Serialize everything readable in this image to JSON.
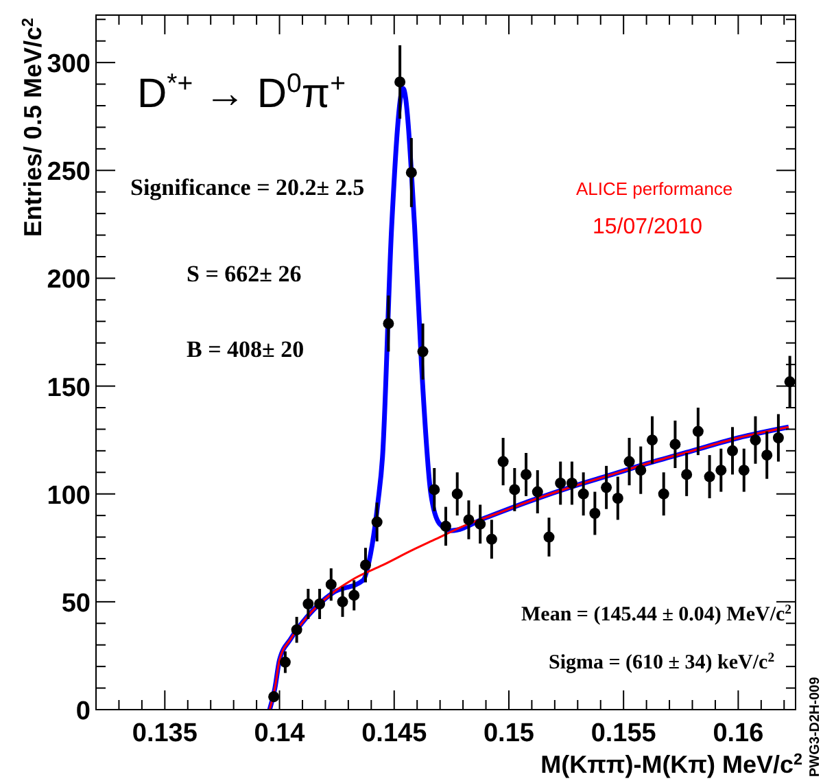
{
  "chart_data": {
    "type": "scatter",
    "title": "D$^{*+}$ → D$^{0}$π$^{+}$",
    "xlabel": "M(Kππ)-M(Kπ) MeV/c$^{2}$",
    "ylabel": "Entries/ 0.5 MeV/c$^{2}$",
    "annotations": [
      "Significance = 20.2± 2.5",
      "S = 662± 26",
      "B = 408± 20",
      "ALICE performance",
      "15/07/2010",
      "Mean = (145.44 ± 0.04) MeV/c$^{2}$",
      "Sigma = (610 ± 34) keV/c$^{2}$",
      "PWG3-D2H-009"
    ],
    "xlim": [
      0.132,
      0.1625
    ],
    "ylim": [
      0,
      322
    ],
    "xticks": [
      {
        "value": 0.133,
        "label": null
      },
      {
        "value": 0.134,
        "label": null
      },
      0.135,
      {
        "value": 0.136,
        "label": null
      },
      {
        "value": 0.137,
        "label": null
      },
      {
        "value": 0.138,
        "label": null
      },
      {
        "value": 0.139,
        "label": null
      },
      0.14,
      {
        "value": 0.141,
        "label": null
      },
      {
        "value": 0.142,
        "label": null
      },
      {
        "value": 0.143,
        "label": null
      },
      {
        "value": 0.144,
        "label": null
      },
      0.145,
      {
        "value": 0.146,
        "label": null
      },
      {
        "value": 0.147,
        "label": null
      },
      {
        "value": 0.148,
        "label": null
      },
      {
        "value": 0.149,
        "label": null
      },
      0.15,
      {
        "value": 0.151,
        "label": null
      },
      {
        "value": 0.152,
        "label": null
      },
      {
        "value": 0.153,
        "label": null
      },
      {
        "value": 0.154,
        "label": null
      },
      0.155,
      {
        "value": 0.156,
        "label": null
      },
      {
        "value": 0.157,
        "label": null
      },
      {
        "value": 0.158,
        "label": null
      },
      {
        "value": 0.159,
        "label": null
      },
      0.16,
      {
        "value": 0.161,
        "label": null
      },
      {
        "value": 0.162,
        "label": null
      }
    ],
    "yticks": [
      0,
      {
        "value": 10,
        "label": null
      },
      {
        "value": 20,
        "label": null
      },
      {
        "value": 30,
        "label": null
      },
      {
        "value": 40,
        "label": null
      },
      50,
      {
        "value": 60,
        "label": null
      },
      {
        "value": 70,
        "label": null
      },
      {
        "value": 80,
        "label": null
      },
      {
        "value": 90,
        "label": null
      },
      100,
      {
        "value": 110,
        "label": null
      },
      {
        "value": 120,
        "label": null
      },
      {
        "value": 130,
        "label": null
      },
      {
        "value": 140,
        "label": null
      },
      150,
      {
        "value": 160,
        "label": null
      },
      {
        "value": 170,
        "label": null
      },
      {
        "value": 180,
        "label": null
      },
      {
        "value": 190,
        "label": null
      },
      200,
      {
        "value": 210,
        "label": null
      },
      {
        "value": 220,
        "label": null
      },
      {
        "value": 230,
        "label": null
      },
      {
        "value": 240,
        "label": null
      },
      250,
      {
        "value": 260,
        "label": null
      },
      {
        "value": 270,
        "label": null
      },
      {
        "value": 280,
        "label": null
      },
      {
        "value": 290,
        "label": null
      },
      300,
      {
        "value": 310,
        "label": null
      },
      {
        "value": 320,
        "label": null
      }
    ],
    "marker": "circle",
    "series": [
      {
        "type": "line",
        "color": "#0000ff",
        "marker": "none",
        "x": [
          0.13957,
          0.1398,
          0.14,
          0.1405,
          0.1412,
          0.1423,
          0.14365,
          0.14389,
          0.14429,
          0.14449,
          0.14489,
          0.14539,
          0.14589,
          0.14619,
          0.1466,
          0.14699,
          0.1475,
          0.149,
          0.151,
          0.1528,
          0.1545,
          0.156,
          0.158,
          0.16,
          0.1622
        ],
        "values": [
          0,
          10,
          23,
          33,
          43,
          54,
          60,
          68,
          96,
          117,
          224,
          288,
          224,
          160,
          100,
          86,
          83,
          89,
          97,
          103.5,
          109,
          114,
          120,
          126,
          131
        ]
      },
      {
        "type": "line",
        "color": "#ff0000",
        "marker": "none",
        "x": [
          0.13957,
          0.1398,
          0.14,
          0.1405,
          0.1412,
          0.1423,
          0.1433,
          0.1445,
          0.1458,
          0.1468,
          0.148,
          0.1495,
          0.151,
          0.1528,
          0.1545,
          0.156,
          0.158,
          0.16,
          0.1622
        ],
        "values": [
          0,
          10,
          23,
          33,
          43,
          54,
          61,
          67,
          74,
          79,
          85,
          91,
          97,
          103.5,
          109,
          114,
          120,
          126,
          131
        ]
      },
      {
        "color": "#000000",
        "x": [
          0.13975,
          0.14025,
          0.14075,
          0.14125,
          0.14175,
          0.14225,
          0.14275,
          0.14325,
          0.14375,
          0.14425,
          0.14475,
          0.14525,
          0.14575,
          0.14625,
          0.14675,
          0.14725,
          0.14775,
          0.14825,
          0.14875,
          0.14925,
          0.14975,
          0.15025,
          0.15075,
          0.15125,
          0.15175,
          0.15225,
          0.15275,
          0.15325,
          0.15375,
          0.15425,
          0.15475,
          0.15525,
          0.15575,
          0.15625,
          0.15675,
          0.15725,
          0.15775,
          0.15825,
          0.15875,
          0.15925,
          0.15975,
          0.16025,
          0.16075,
          0.16125,
          0.16175,
          0.16225
        ],
        "values": [
          6,
          22,
          37,
          49,
          49,
          58,
          50,
          53,
          67,
          87,
          179,
          291,
          249,
          166,
          102,
          85,
          100,
          88,
          86,
          79,
          115,
          102,
          109,
          101,
          80,
          105,
          105,
          100,
          91,
          103,
          98,
          115,
          111,
          125,
          100,
          123,
          109,
          129,
          108,
          111,
          120,
          111,
          125,
          118,
          126,
          152
        ],
        "errors": [
          2.5,
          5,
          6,
          7,
          7,
          7.5,
          7,
          7,
          8,
          9,
          13,
          17,
          16,
          13,
          10,
          9,
          10,
          9,
          9,
          9,
          11,
          10,
          10,
          10,
          9,
          10,
          10,
          10,
          10,
          10,
          10,
          11,
          11,
          11,
          10,
          11,
          10,
          11,
          10,
          10,
          11,
          10,
          11,
          11,
          11,
          12
        ]
      }
    ]
  }
}
